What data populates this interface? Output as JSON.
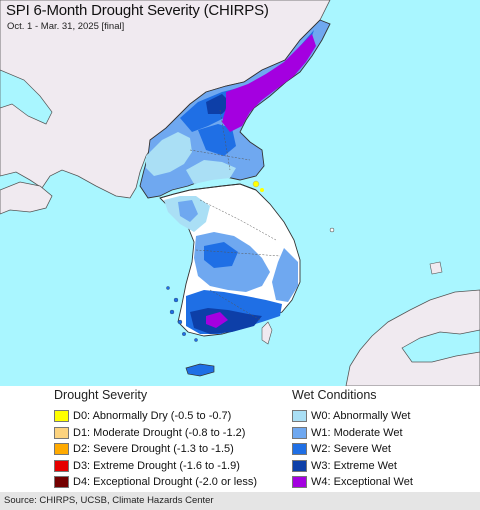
{
  "title": "SPI 6-Month Drought Severity (CHIRPS)",
  "subtitle": "Oct. 1 - Mar. 31, 2025 [final]",
  "legend": {
    "drought": {
      "heading": "Drought Severity",
      "items": [
        {
          "label": "D0: Abnormally Dry (-0.5 to -0.7)",
          "color": "#ffff00"
        },
        {
          "label": "D1: Moderate Drought (-0.8 to -1.2)",
          "color": "#fcd37f"
        },
        {
          "label": "D2: Severe Drought (-1.3 to -1.5)",
          "color": "#ffaa00"
        },
        {
          "label": "D3: Extreme Drought (-1.6 to -1.9)",
          "color": "#e60000"
        },
        {
          "label": "D4: Exceptional Drought (-2.0 or less)",
          "color": "#730000"
        }
      ]
    },
    "wet": {
      "heading": "Wet Conditions",
      "items": [
        {
          "label": "W0: Abnormally Wet",
          "color": "#aadff5"
        },
        {
          "label": "W1: Moderate Wet",
          "color": "#6fa8f0"
        },
        {
          "label": "W2: Severe Wet",
          "color": "#1f6fe5"
        },
        {
          "label": "W3: Extreme Wet",
          "color": "#0d3fa8"
        },
        {
          "label": "W4: Exceptional Wet",
          "color": "#a400e0"
        }
      ]
    }
  },
  "colors": {
    "water": "#a9f6ff",
    "land_outside": "#f0eaf0",
    "neutral_land": "#ffffff",
    "border": "#444444"
  },
  "footer": "Source: CHIRPS, UCSB, Climate Hazards Center"
}
